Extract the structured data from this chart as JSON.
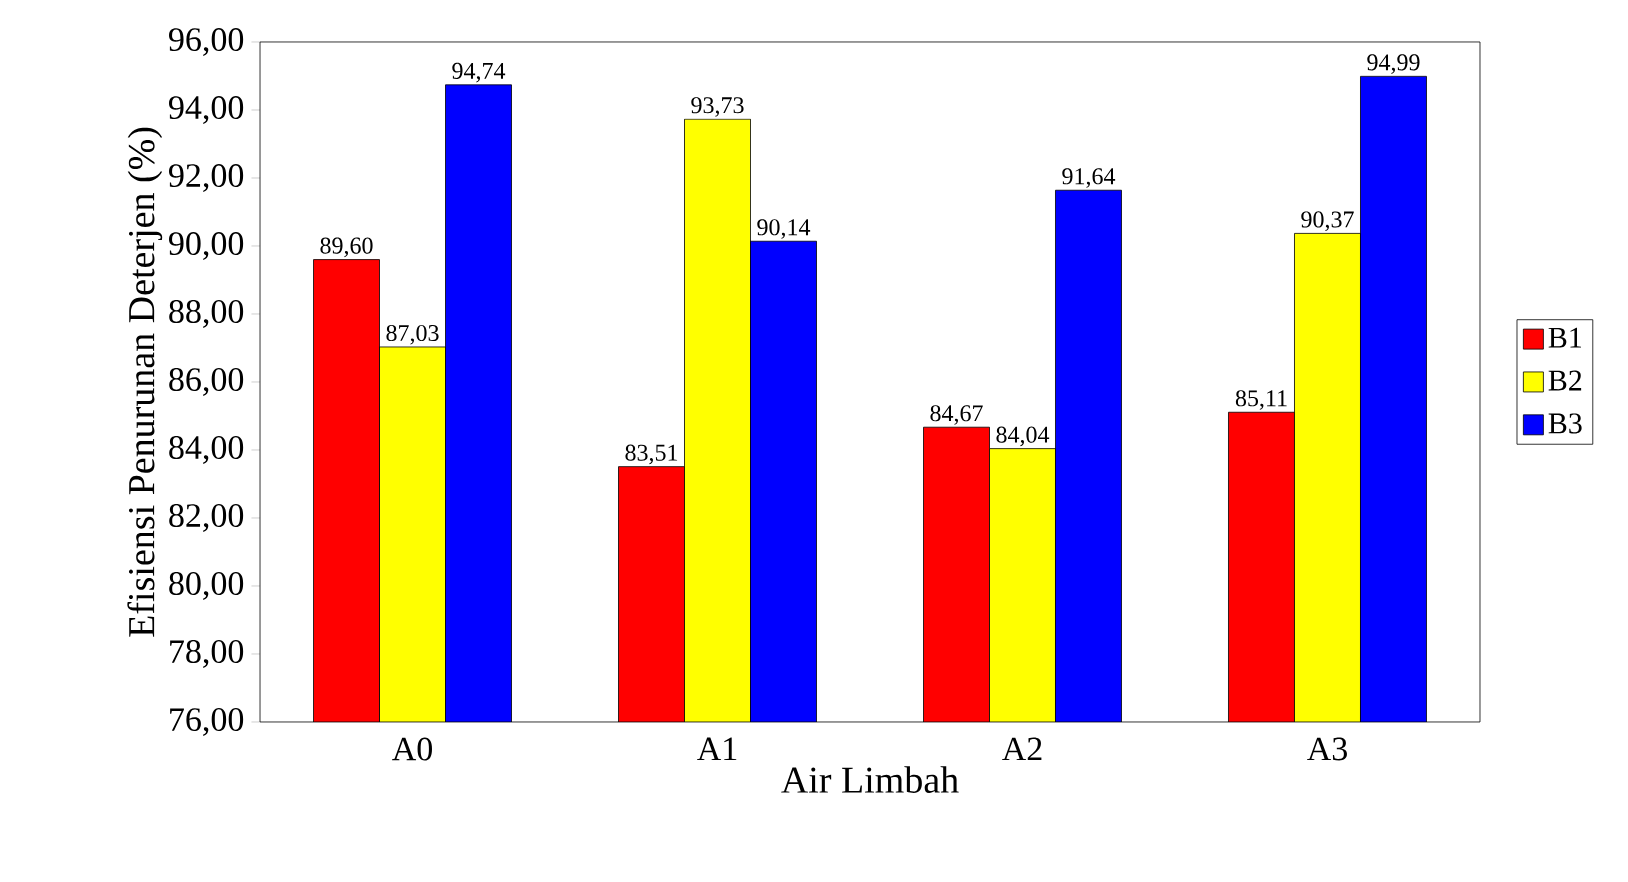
{
  "chart_data": {
    "type": "bar",
    "xlabel": "Air Limbah",
    "ylabel": "Efisiensi Penurunan Deterjen (%)",
    "categories": [
      "A0",
      "A1",
      "A2",
      "A3"
    ],
    "series": [
      {
        "name": "B1",
        "color": "#ff0000",
        "values": [
          89.6,
          83.51,
          84.67,
          85.11
        ],
        "value_labels": [
          "89,60",
          "83,51",
          "84,67",
          "85,11"
        ]
      },
      {
        "name": "B2",
        "color": "#ffff00",
        "values": [
          87.03,
          93.73,
          84.04,
          90.37
        ],
        "value_labels": [
          "87,03",
          "93,73",
          "84,04",
          "90,37"
        ]
      },
      {
        "name": "B3",
        "color": "#0000ff",
        "values": [
          94.74,
          90.14,
          91.64,
          94.99
        ],
        "value_labels": [
          "94,74",
          "90,14",
          "91,64",
          "94,99"
        ]
      }
    ],
    "ylim": [
      76,
      96
    ],
    "yticks": [
      {
        "value": 76,
        "label": "76,00"
      },
      {
        "value": 78,
        "label": "78,00"
      },
      {
        "value": 80,
        "label": "80,00"
      },
      {
        "value": 82,
        "label": "82,00"
      },
      {
        "value": 84,
        "label": "84,00"
      },
      {
        "value": 86,
        "label": "86,00"
      },
      {
        "value": 88,
        "label": "88,00"
      },
      {
        "value": 90,
        "label": "90,00"
      },
      {
        "value": 92,
        "label": "92,00"
      },
      {
        "value": 94,
        "label": "94,00"
      },
      {
        "value": 96,
        "label": "96,00"
      }
    ],
    "grid": false,
    "legend": "right"
  }
}
